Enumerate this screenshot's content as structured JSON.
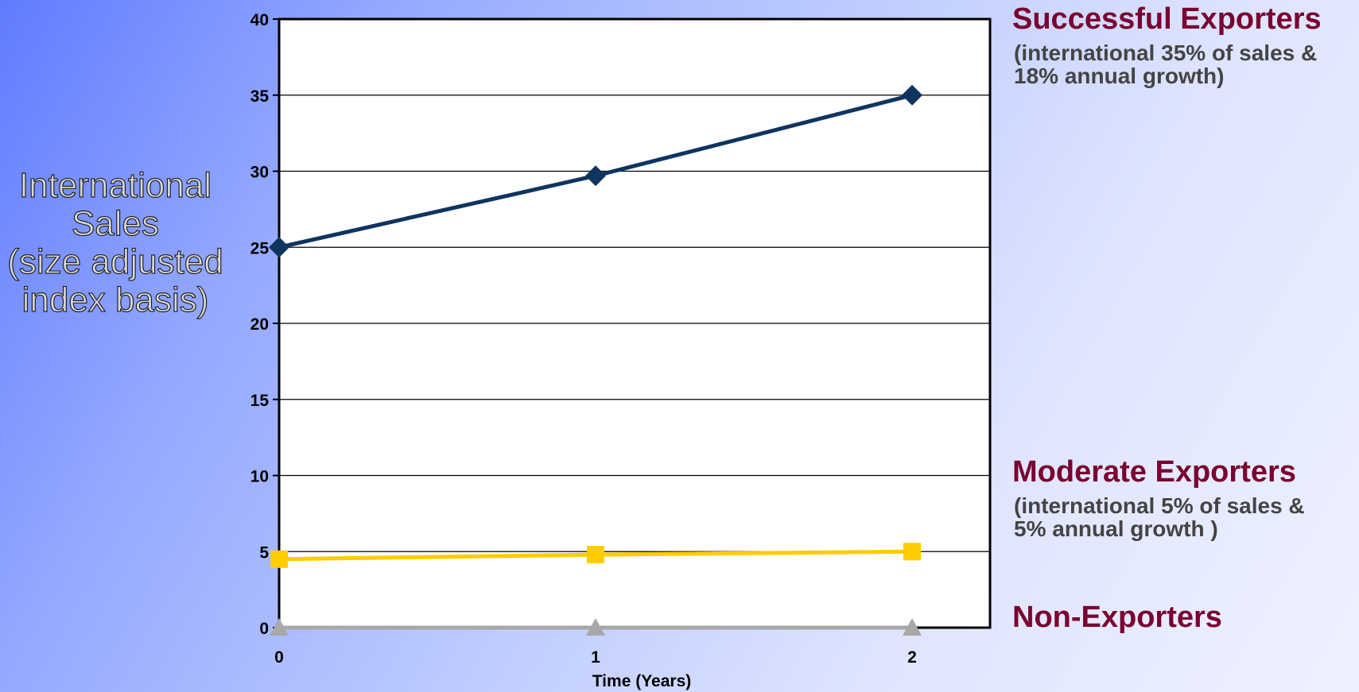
{
  "chart_data": {
    "type": "line",
    "ylabel": "International\nSales\n(size adjusted\nindex basis)",
    "xlabel": "Time (Years)",
    "x": [
      0,
      1,
      2
    ],
    "x_tick_labels": [
      "0",
      "1",
      "2"
    ],
    "ylim": [
      0,
      40
    ],
    "y_ticks": [
      0,
      5,
      10,
      15,
      20,
      25,
      30,
      35,
      40
    ],
    "y_tick_labels": [
      "0",
      "5",
      "10",
      "15",
      "20",
      "25",
      "30",
      "35",
      "40"
    ],
    "grid": "horizontal",
    "series": [
      {
        "values": [
          25,
          29.7,
          35
        ],
        "color": "#0e3460",
        "marker": "diamond"
      },
      {
        "values": [
          4.5,
          4.8,
          5
        ],
        "color": "#ffcc00",
        "marker": "square"
      },
      {
        "values": [
          0,
          0,
          0
        ],
        "color": "#a8a8a8",
        "marker": "triangle"
      }
    ]
  },
  "annotations": {
    "successful_title": "Successful Exporters",
    "successful_sub": "(international 35% of sales &\n18% annual growth)",
    "moderate_title": "Moderate Exporters",
    "moderate_sub": "(international 5% of sales &\n5% annual growth )",
    "non_title": "Non-Exporters"
  },
  "colors": {
    "annotation_title": "#7a0030",
    "annotation_sub": "#444444"
  }
}
